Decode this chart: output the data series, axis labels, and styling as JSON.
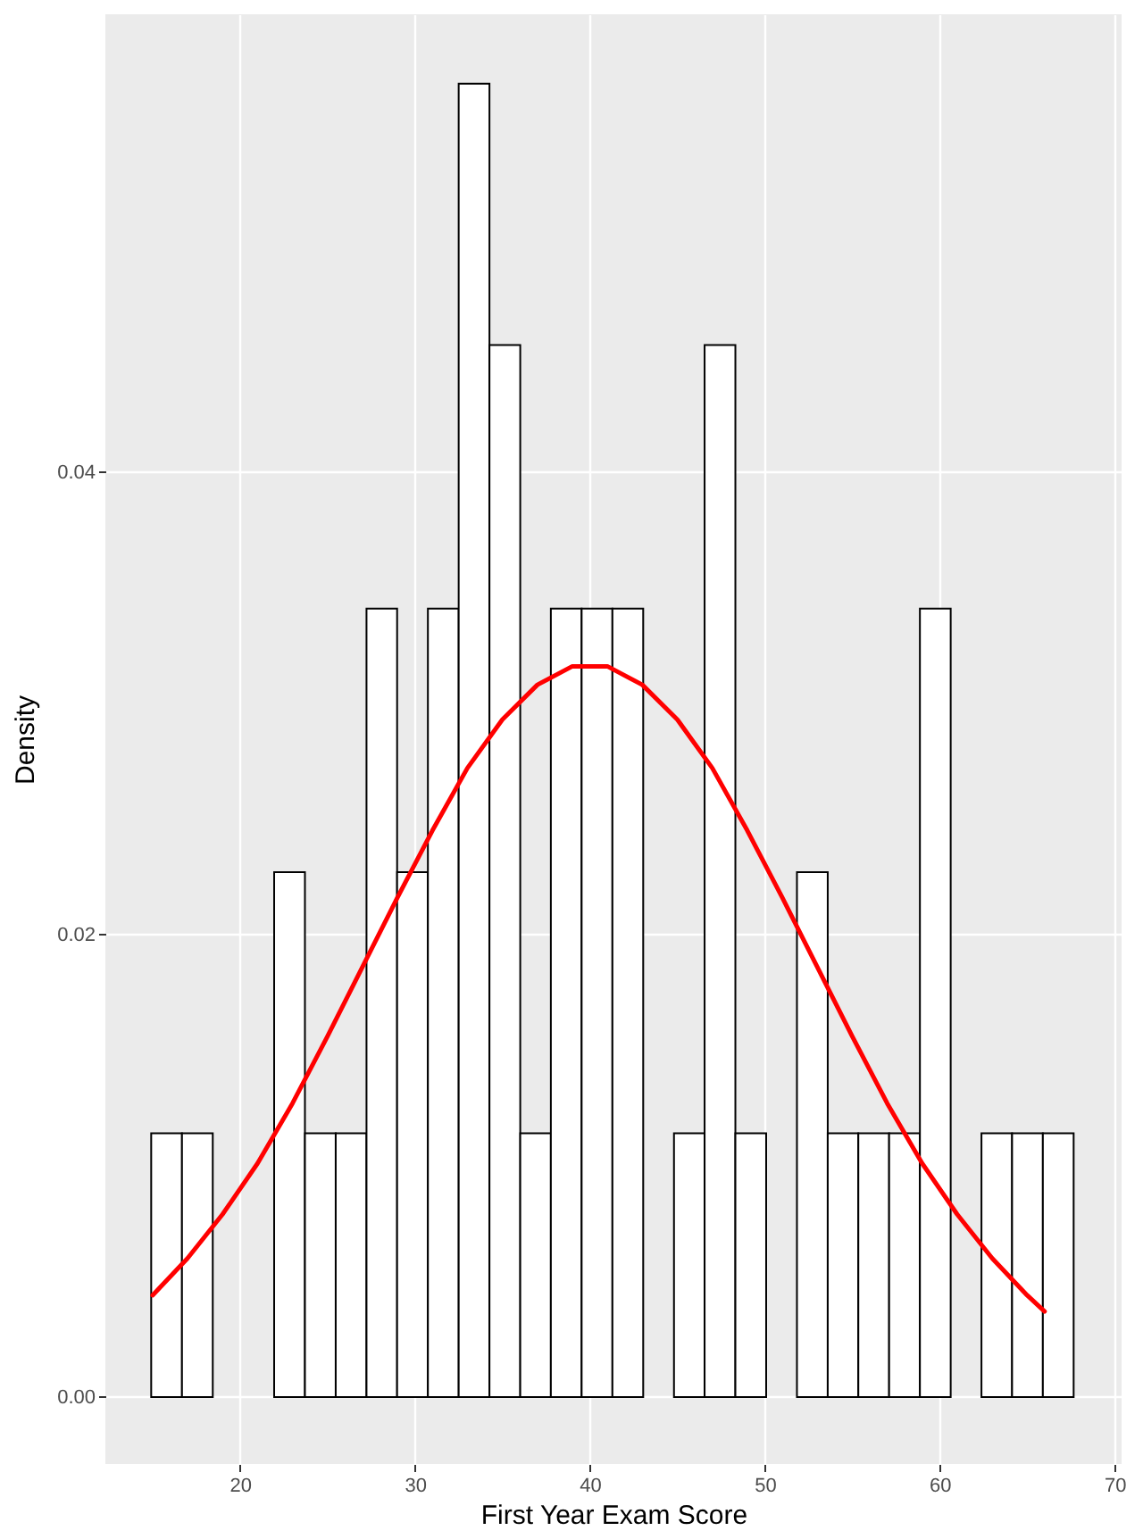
{
  "chart_data": {
    "type": "histogram",
    "xlabel": "First Year Exam Score",
    "ylabel": "Density",
    "bins": [
      14.92,
      16.68,
      18.44,
      20.19,
      21.95,
      23.71,
      25.47,
      27.23,
      28.98,
      30.74,
      32.5,
      34.26,
      36.02,
      37.77,
      39.53,
      41.29,
      43.05,
      44.81,
      46.56,
      48.32,
      50.08,
      51.84,
      53.6,
      55.35,
      57.11,
      58.87,
      60.63,
      62.39,
      64.14,
      65.9,
      67.66
    ],
    "series": [
      {
        "color": "#ffffff",
        "values": [
          0.0114,
          0.0114,
          0,
          0,
          0.0227,
          0.0114,
          0.0114,
          0.0341,
          0.0227,
          0.0341,
          0.0568,
          0.0455,
          0.0114,
          0.0341,
          0.0341,
          0.0341,
          0,
          0.0114,
          0.0455,
          0.0114,
          0,
          0.0227,
          0.0114,
          0.0114,
          0.0114,
          0.0341,
          0,
          0.0114,
          0.0114,
          0.0114
        ]
      },
      {
        "type": "line",
        "color": "#ff0000",
        "x": [
          15,
          17,
          19,
          21,
          23,
          25,
          27,
          29,
          31,
          33,
          35,
          37,
          39,
          41,
          43,
          45,
          47,
          49,
          51,
          53,
          55,
          57,
          59,
          61,
          63,
          65,
          66
        ],
        "values": [
          0.0044,
          0.006,
          0.0079,
          0.0101,
          0.0127,
          0.0156,
          0.0186,
          0.0216,
          0.0245,
          0.0272,
          0.0293,
          0.0308,
          0.0316,
          0.0316,
          0.0308,
          0.0293,
          0.0272,
          0.0245,
          0.0216,
          0.0186,
          0.0156,
          0.0127,
          0.0101,
          0.0079,
          0.006,
          0.0044,
          0.0037
        ]
      }
    ],
    "xlim": [
      12.3,
      70.4
    ],
    "ylim": [
      -0.0029,
      0.0598
    ],
    "xticks": [
      20,
      30,
      40,
      50,
      60,
      70
    ],
    "yticks": [
      {
        "value": 0,
        "label": "0.00"
      },
      0.02,
      0.04
    ],
    "grid": true
  }
}
